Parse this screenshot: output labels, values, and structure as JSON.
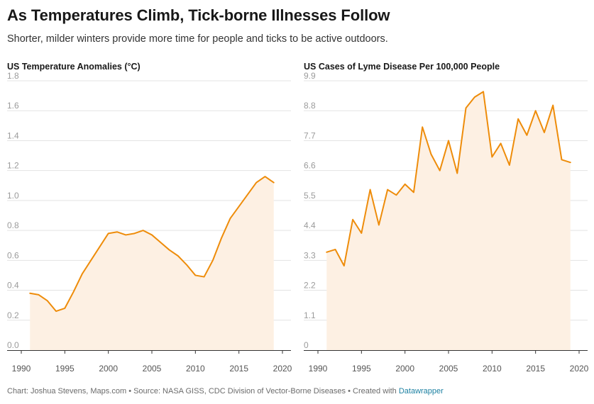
{
  "header": {
    "title": "As Temperatures Climb, Tick-borne Illnesses Follow",
    "subtitle": "Shorter, milder winters provide more time for people and ticks to be active outdoors."
  },
  "footer": {
    "prefix": "Chart: Joshua Stevens, Maps.com • Source: NASA GISS, CDC Division of Vector-Borne Diseases • Created with",
    "brand": "Datawrapper"
  },
  "colors": {
    "line": "#ee8c0a",
    "area": "#fdf0e3",
    "grid": "#e3e3e3",
    "tick": "#9b9b9b"
  },
  "chart_data": [
    {
      "type": "area",
      "title": "US Temperature Anomalies (°C)",
      "xlabel": "",
      "ylabel": "",
      "x": [
        1991,
        1992,
        1993,
        1994,
        1995,
        1996,
        1997,
        1998,
        1999,
        2000,
        2001,
        2002,
        2003,
        2004,
        2005,
        2006,
        2007,
        2008,
        2009,
        2010,
        2011,
        2012,
        2013,
        2014,
        2015,
        2016,
        2017,
        2018,
        2019
      ],
      "values": [
        0.38,
        0.37,
        0.33,
        0.26,
        0.28,
        0.39,
        0.51,
        0.6,
        0.69,
        0.78,
        0.79,
        0.77,
        0.78,
        0.8,
        0.77,
        0.72,
        0.67,
        0.63,
        0.57,
        0.5,
        0.49,
        0.6,
        0.75,
        0.88,
        0.96,
        1.04,
        1.12,
        1.16,
        1.12
      ],
      "xlim": [
        1990,
        2020
      ],
      "ylim": [
        0,
        1.8
      ],
      "xticks": [
        1990,
        1995,
        2000,
        2005,
        2010,
        2015,
        2020
      ],
      "yticks": [
        "0.0",
        "0.2",
        "0.4",
        "0.6",
        "0.8",
        "1.0",
        "1.2",
        "1.4",
        "1.6",
        "1.8"
      ],
      "grid": true
    },
    {
      "type": "area",
      "title": "US Cases of Lyme Disease Per 100,000 People",
      "xlabel": "",
      "ylabel": "",
      "x": [
        1991,
        1992,
        1993,
        1994,
        1995,
        1996,
        1997,
        1998,
        1999,
        2000,
        2001,
        2002,
        2003,
        2004,
        2005,
        2006,
        2007,
        2008,
        2009,
        2010,
        2011,
        2012,
        2013,
        2014,
        2015,
        2016,
        2017,
        2018,
        2019
      ],
      "values": [
        3.6,
        3.7,
        3.1,
        4.8,
        4.3,
        5.9,
        4.6,
        5.9,
        5.7,
        6.1,
        5.8,
        8.2,
        7.2,
        6.6,
        7.7,
        6.5,
        8.9,
        9.3,
        9.5,
        7.1,
        7.6,
        6.8,
        8.5,
        7.9,
        8.8,
        8.0,
        9.0,
        7.0,
        6.9
      ],
      "xlim": [
        1990,
        2020
      ],
      "ylim": [
        0,
        9.9
      ],
      "xticks": [
        1990,
        1995,
        2000,
        2005,
        2010,
        2015,
        2020
      ],
      "yticks": [
        "0",
        "1.1",
        "2.2",
        "3.3",
        "4.4",
        "5.5",
        "6.6",
        "7.7",
        "8.8",
        "9.9"
      ],
      "grid": true
    }
  ]
}
